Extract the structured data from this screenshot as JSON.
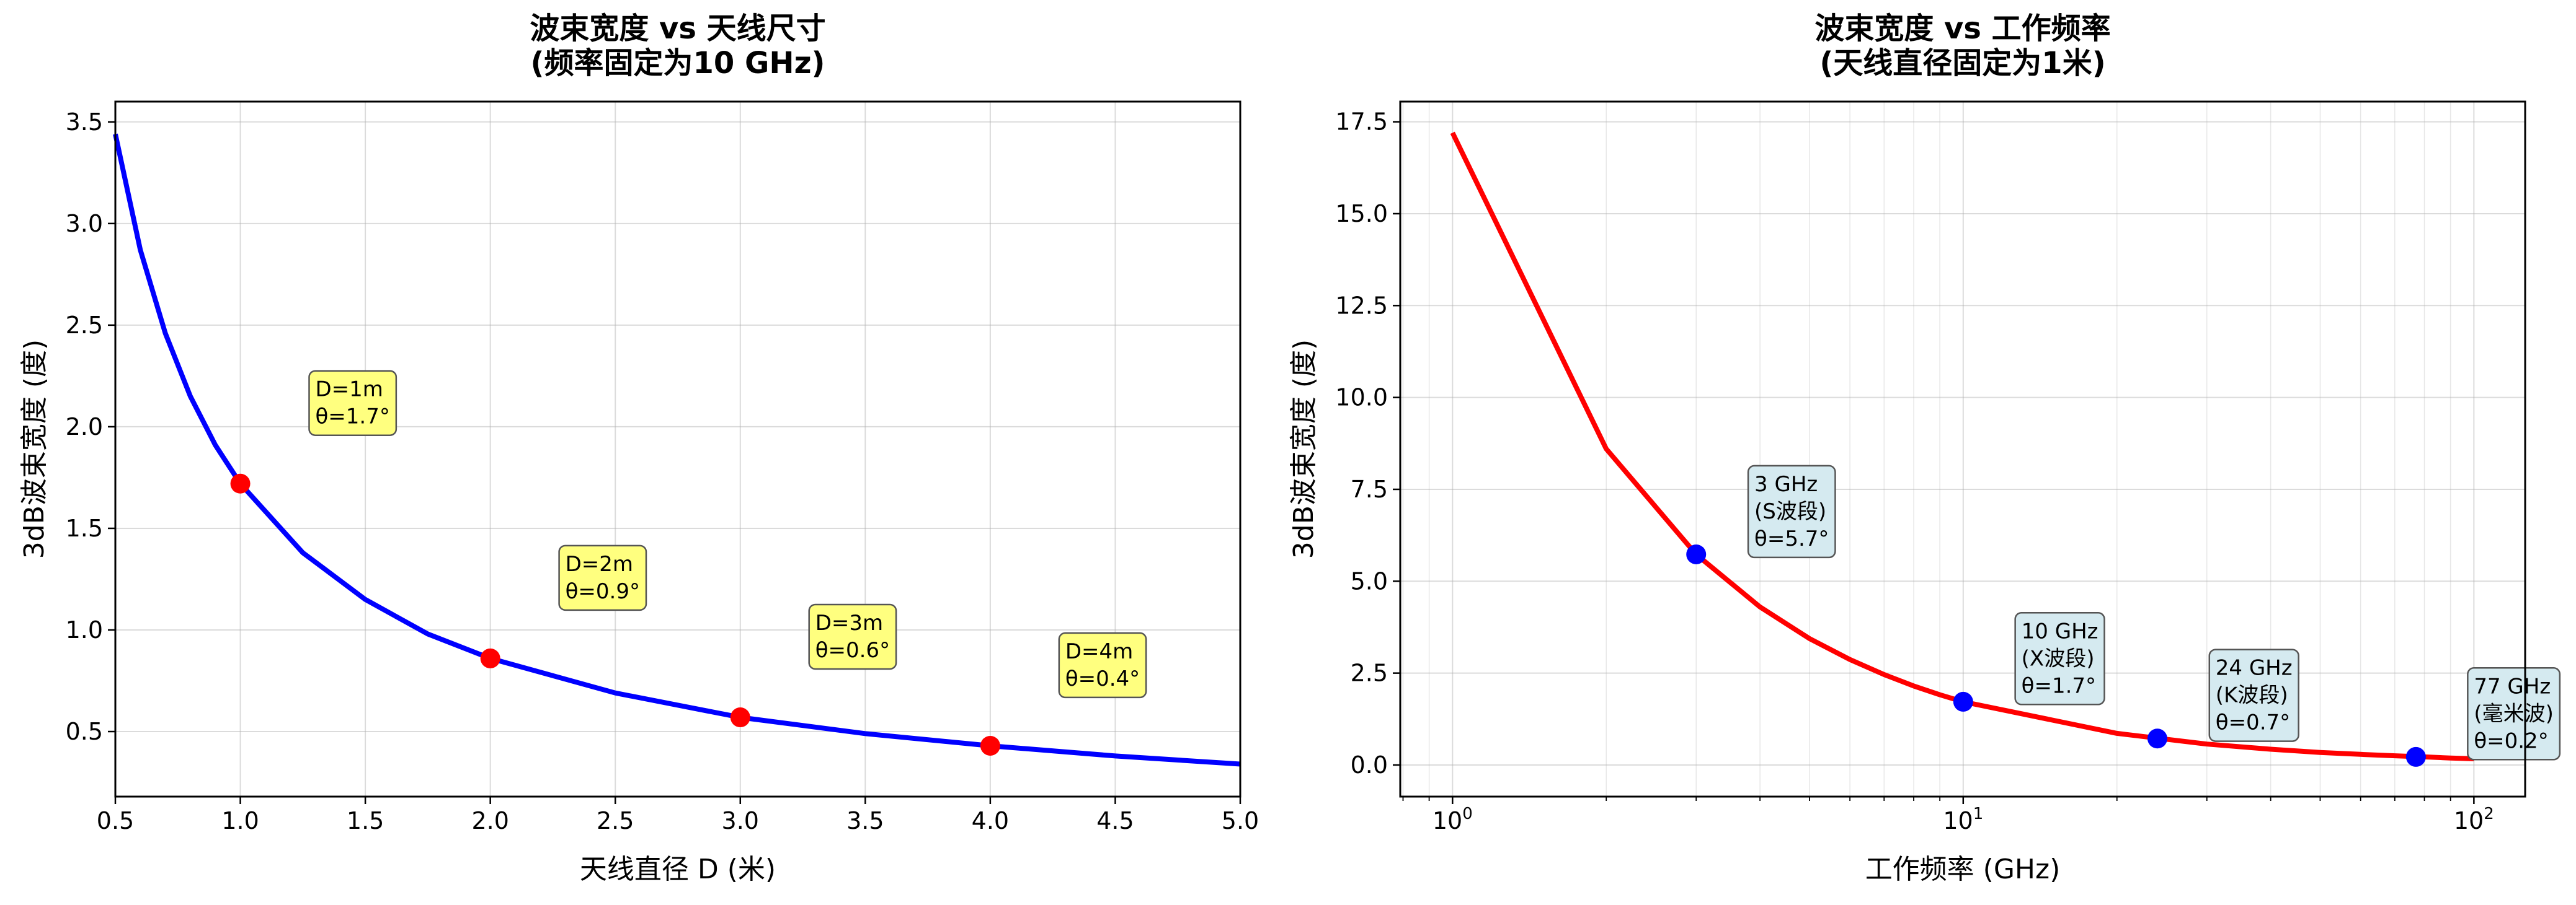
{
  "chart_data": [
    {
      "type": "line",
      "title": "波束宽度 vs 天线尺寸\n(频率固定为10 GHz)",
      "xlabel": "天线直径 D (米)",
      "ylabel": "3dB波束宽度 (度)",
      "xlim": [
        0.5,
        5.0
      ],
      "ylim": [
        0.18,
        3.6
      ],
      "xticks": [
        "0.5",
        "1.0",
        "1.5",
        "2.0",
        "2.5",
        "3.0",
        "3.5",
        "4.0",
        "4.5",
        "5.0"
      ],
      "yticks": [
        "0.5",
        "1.0",
        "1.5",
        "2.0",
        "2.5",
        "3.0",
        "3.5"
      ],
      "grid": true,
      "line_color": "#0000ff",
      "marker_color": "#ff0000",
      "series": [
        {
          "x": [
            0.5,
            0.6,
            0.7,
            0.8,
            0.9,
            1.0,
            1.25,
            1.5,
            1.75,
            2.0,
            2.5,
            3.0,
            3.5,
            4.0,
            4.5,
            5.0
          ],
          "y": [
            3.44,
            2.87,
            2.46,
            2.15,
            1.91,
            1.72,
            1.38,
            1.15,
            0.98,
            0.86,
            0.69,
            0.57,
            0.49,
            0.43,
            0.38,
            0.34
          ]
        }
      ],
      "points": [
        {
          "x": 1,
          "y": 1.72
        },
        {
          "x": 2,
          "y": 0.86
        },
        {
          "x": 3,
          "y": 0.57
        },
        {
          "x": 4,
          "y": 0.43
        }
      ],
      "annotations": [
        {
          "lines": [
            "D=1m",
            "θ=1.7°"
          ],
          "x": 1.3,
          "y": 2.15
        },
        {
          "lines": [
            "D=2m",
            "θ=0.9°"
          ],
          "x": 2.3,
          "y": 1.29
        },
        {
          "lines": [
            "D=3m",
            "θ=0.6°"
          ],
          "x": 3.3,
          "y": 1.0
        },
        {
          "lines": [
            "D=4m",
            "θ=0.4°"
          ],
          "x": 4.3,
          "y": 0.86
        }
      ],
      "annotation_fill": "#ffff7f"
    },
    {
      "type": "line",
      "title": "波束宽度 vs 工作频率\n(天线直径固定为1米)",
      "xlabel": "工作频率 (GHz)",
      "ylabel": "3dB波束宽度 (度)",
      "xscale": "log",
      "xlim": [
        0.79,
        126
      ],
      "ylim": [
        -0.86,
        18.05
      ],
      "xticks": [
        1,
        10,
        100
      ],
      "yticks": [
        "0.0",
        "2.5",
        "5.0",
        "7.5",
        "10.0",
        "12.5",
        "15.0",
        "17.5"
      ],
      "grid": true,
      "line_color": "#ff0000",
      "marker_color": "#0000ff",
      "series": [
        {
          "x": [
            1,
            2,
            3,
            4,
            5,
            6,
            7,
            8,
            9,
            10,
            20,
            30,
            40,
            50,
            60,
            70,
            80,
            90,
            100
          ],
          "y": [
            17.2,
            8.6,
            5.73,
            4.3,
            3.44,
            2.87,
            2.46,
            2.15,
            1.91,
            1.72,
            0.86,
            0.57,
            0.43,
            0.34,
            0.29,
            0.25,
            0.22,
            0.19,
            0.17
          ]
        }
      ],
      "points": [
        {
          "x": 3,
          "y": 5.73
        },
        {
          "x": 10,
          "y": 1.72
        },
        {
          "x": 24,
          "y": 0.72
        },
        {
          "x": 77,
          "y": 0.22
        }
      ],
      "annotations": [
        {
          "lines": [
            "3 GHz",
            "(S波段)",
            "θ=5.7°"
          ],
          "x": 3.9,
          "y": 7.45
        },
        {
          "lines": [
            "10 GHz",
            "(X波段)",
            "θ=1.7°"
          ],
          "x": 13,
          "y": 3.45
        },
        {
          "lines": [
            "24 GHz",
            "(K波段)",
            "θ=0.7°"
          ],
          "x": 31.2,
          "y": 2.45
        },
        {
          "lines": [
            "77 GHz",
            "(毫米波)",
            "θ=0.2°"
          ],
          "x": 100,
          "y": 1.95
        }
      ],
      "annotation_fill": "#d5eaf0"
    }
  ]
}
